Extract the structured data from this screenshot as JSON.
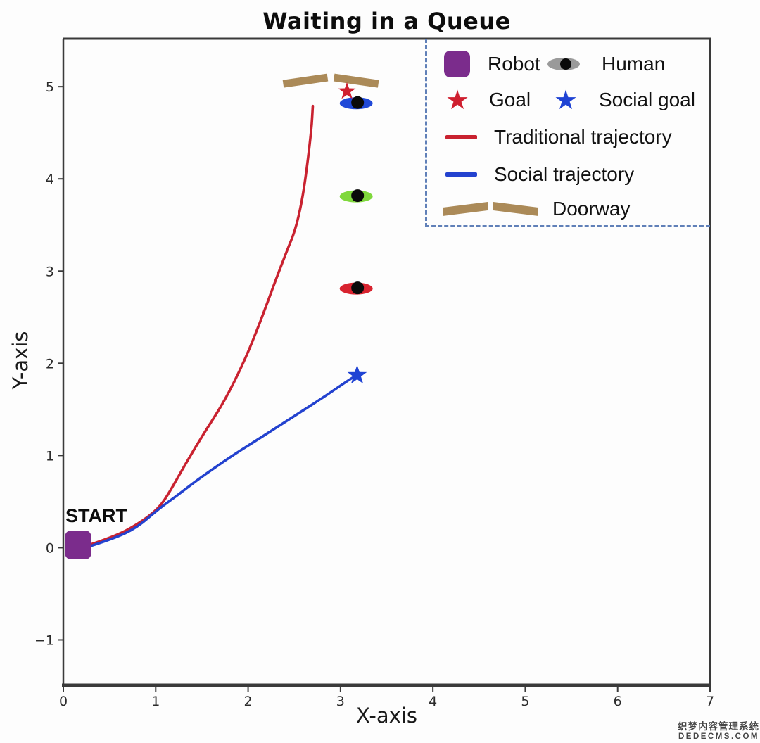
{
  "chart_data": {
    "type": "line",
    "title": "Waiting in a Queue",
    "xlabel": "X-axis",
    "ylabel": "Y-axis",
    "xlim": [
      0,
      7
    ],
    "ylim": [
      -1.5,
      5.52
    ],
    "xticks": [
      "0",
      "1",
      "2",
      "3",
      "4",
      "5",
      "6",
      "7"
    ],
    "xtick_values": [
      0,
      1,
      2,
      3,
      4,
      5,
      6,
      7
    ],
    "yticks": [
      "−1",
      "0",
      "1",
      "2",
      "3",
      "4",
      "5"
    ],
    "ytick_values": [
      -1,
      0,
      1,
      2,
      3,
      4,
      5
    ],
    "grid": false,
    "annotations": [
      {
        "text": "START",
        "x": 0.04,
        "y": 0.42
      }
    ],
    "robot": {
      "label": "Robot",
      "x": 0.16,
      "y": 0.03,
      "color": "#7b2c8c"
    },
    "goal": {
      "label": "Goal",
      "x": 3.07,
      "y": 4.95,
      "color": "#cf1f2f"
    },
    "social_goal": {
      "label": "Social goal",
      "x": 3.18,
      "y": 1.87,
      "color": "#1f43d4"
    },
    "humans": [
      {
        "x": 3.17,
        "y": 4.82,
        "color": "#2049d8"
      },
      {
        "x": 3.17,
        "y": 3.81,
        "color": "#7fd83c"
      },
      {
        "x": 3.17,
        "y": 2.81,
        "color": "#d8232f"
      }
    ],
    "doorway": {
      "color": "#ab8a58",
      "thickness_px": 11,
      "panels": [
        {
          "x1": 2.38,
          "y1": 5.03,
          "x2": 2.86,
          "y2": 5.1
        },
        {
          "x1": 2.93,
          "y1": 5.1,
          "x2": 3.41,
          "y2": 5.03
        }
      ]
    },
    "series": [
      {
        "name": "Traditional trajectory",
        "color": "#c92230",
        "points": [
          [
            0.28,
            0.03
          ],
          [
            0.55,
            0.12
          ],
          [
            0.8,
            0.25
          ],
          [
            1.03,
            0.42
          ],
          [
            1.16,
            0.62
          ],
          [
            1.3,
            0.87
          ],
          [
            1.52,
            1.24
          ],
          [
            1.74,
            1.58
          ],
          [
            1.95,
            2.0
          ],
          [
            2.13,
            2.44
          ],
          [
            2.29,
            2.88
          ],
          [
            2.42,
            3.22
          ],
          [
            2.51,
            3.44
          ],
          [
            2.58,
            3.74
          ],
          [
            2.63,
            4.07
          ],
          [
            2.67,
            4.4
          ],
          [
            2.69,
            4.6
          ],
          [
            2.7,
            4.79
          ]
        ]
      },
      {
        "name": "Social trajectory",
        "color": "#2342cf",
        "points": [
          [
            0.3,
            0.02
          ],
          [
            0.55,
            0.1
          ],
          [
            0.8,
            0.22
          ],
          [
            1.03,
            0.42
          ],
          [
            1.25,
            0.58
          ],
          [
            1.47,
            0.75
          ],
          [
            1.8,
            0.98
          ],
          [
            2.1,
            1.17
          ],
          [
            2.44,
            1.39
          ],
          [
            2.8,
            1.62
          ],
          [
            3.12,
            1.84
          ],
          [
            3.18,
            1.87
          ]
        ]
      }
    ],
    "legend": {
      "position": "upper right",
      "border_color": "#6080b8",
      "items": [
        {
          "icon": "robot-square",
          "label": "Robot",
          "color": "#7b2c8c"
        },
        {
          "icon": "human-ellipse",
          "label": "Human",
          "color": "#9a9a9a"
        },
        {
          "icon": "goal-star",
          "label": "Goal",
          "color": "#cf1f2f"
        },
        {
          "icon": "social-goal-star",
          "label": "Social goal",
          "color": "#1f43d4"
        },
        {
          "icon": "trajectory-line",
          "label": "Traditional trajectory",
          "color": "#c92230"
        },
        {
          "icon": "trajectory-line",
          "label": "Social trajectory",
          "color": "#2342cf"
        },
        {
          "icon": "doorway",
          "label": "Doorway",
          "color": "#ab8a58"
        }
      ]
    }
  },
  "watermark": {
    "line1": "织梦内容管理系统",
    "line2": "DEDECMS.COM"
  }
}
